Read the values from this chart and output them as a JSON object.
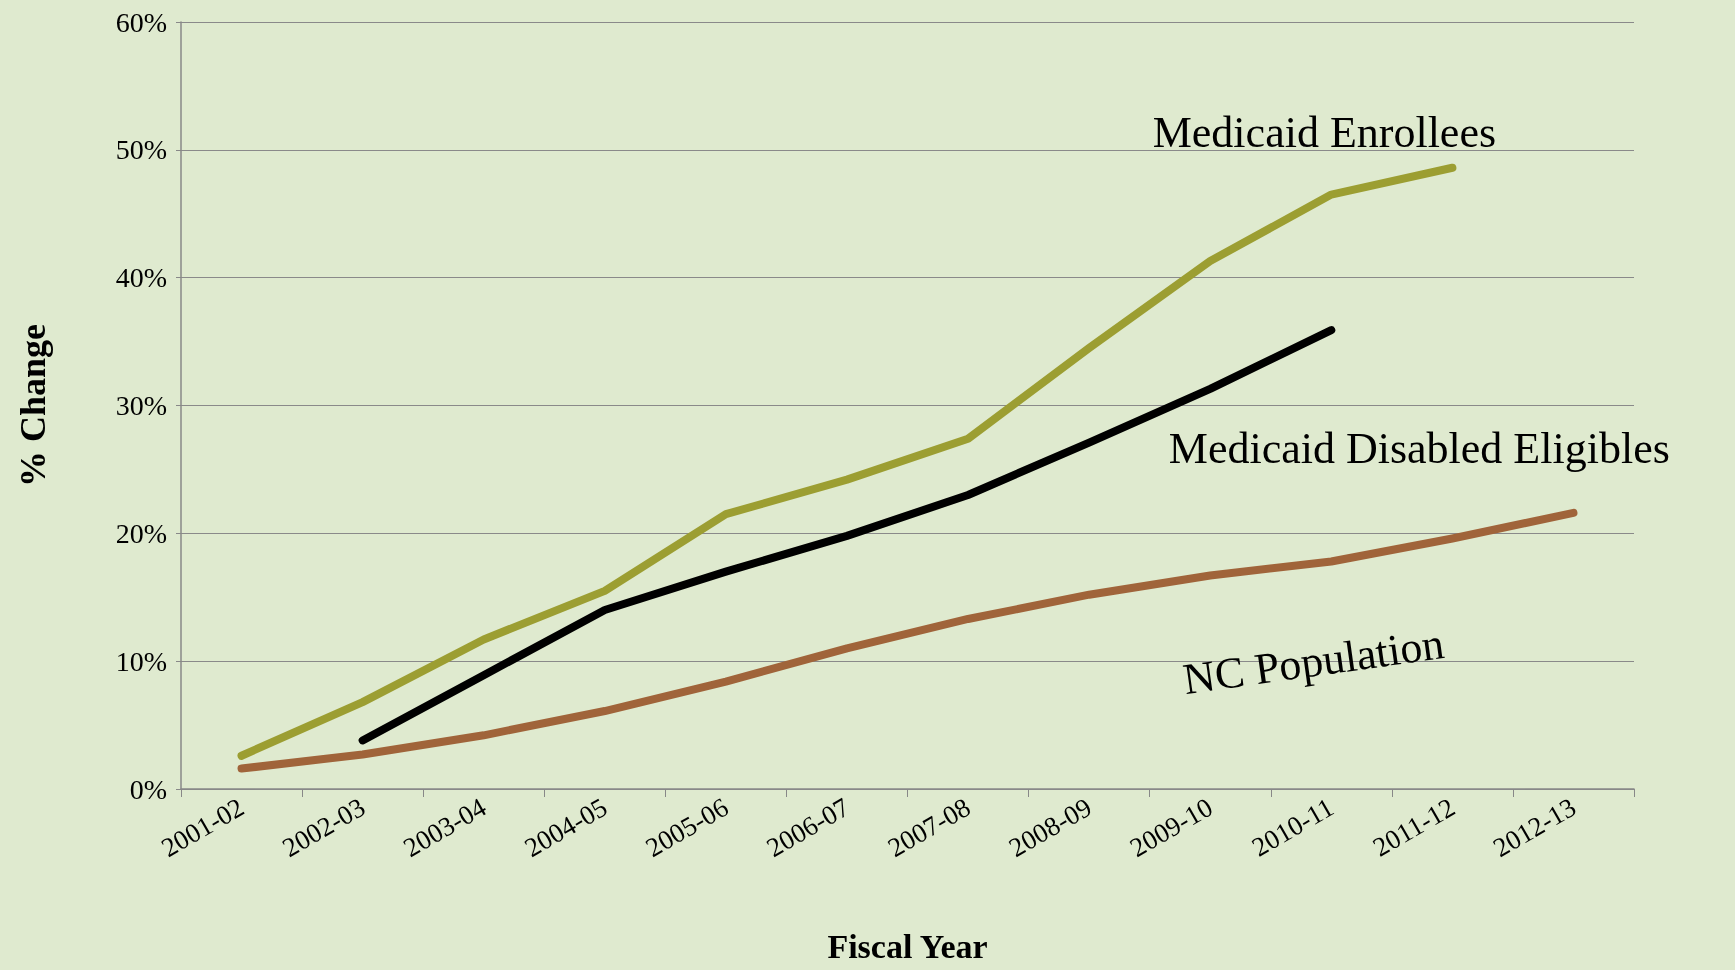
{
  "chart_data": {
    "type": "line",
    "xlabel": "Fiscal Year",
    "ylabel": "% Change",
    "categories": [
      "2001-02",
      "2002-03",
      "2003-04",
      "2004-05",
      "2005-06",
      "2006-07",
      "2007-08",
      "2008-09",
      "2009-10",
      "2010-11",
      "2011-12",
      "2012-13"
    ],
    "series": [
      {
        "name": "Medicaid Enrollees",
        "color": "#9c9e32",
        "values": [
          2.6,
          6.8,
          11.7,
          15.5,
          21.5,
          24.2,
          27.4,
          34.5,
          41.3,
          46.5,
          48.6,
          null
        ]
      },
      {
        "name": "Medicaid Disabled Eligibles",
        "color": "#000000",
        "values": [
          null,
          3.8,
          8.9,
          14.0,
          17.0,
          19.8,
          23.0,
          27.1,
          31.3,
          35.9,
          null,
          null
        ]
      },
      {
        "name": "NC Population",
        "color": "#a0643a",
        "values": [
          1.6,
          2.7,
          4.2,
          6.1,
          8.4,
          11.0,
          13.3,
          15.2,
          16.7,
          17.8,
          19.6,
          21.6
        ]
      }
    ],
    "ylim": [
      0,
      60
    ],
    "yticks": [
      {
        "value": 0,
        "label": "0%"
      },
      {
        "value": 10,
        "label": "10%"
      },
      {
        "value": 20,
        "label": "20%"
      },
      {
        "value": 30,
        "label": "30%"
      },
      {
        "value": 40,
        "label": "40%"
      },
      {
        "value": 50,
        "label": "50%"
      },
      {
        "value": 60,
        "label": "60%"
      }
    ],
    "grid": "y",
    "legend": false,
    "line_style": "solid"
  }
}
